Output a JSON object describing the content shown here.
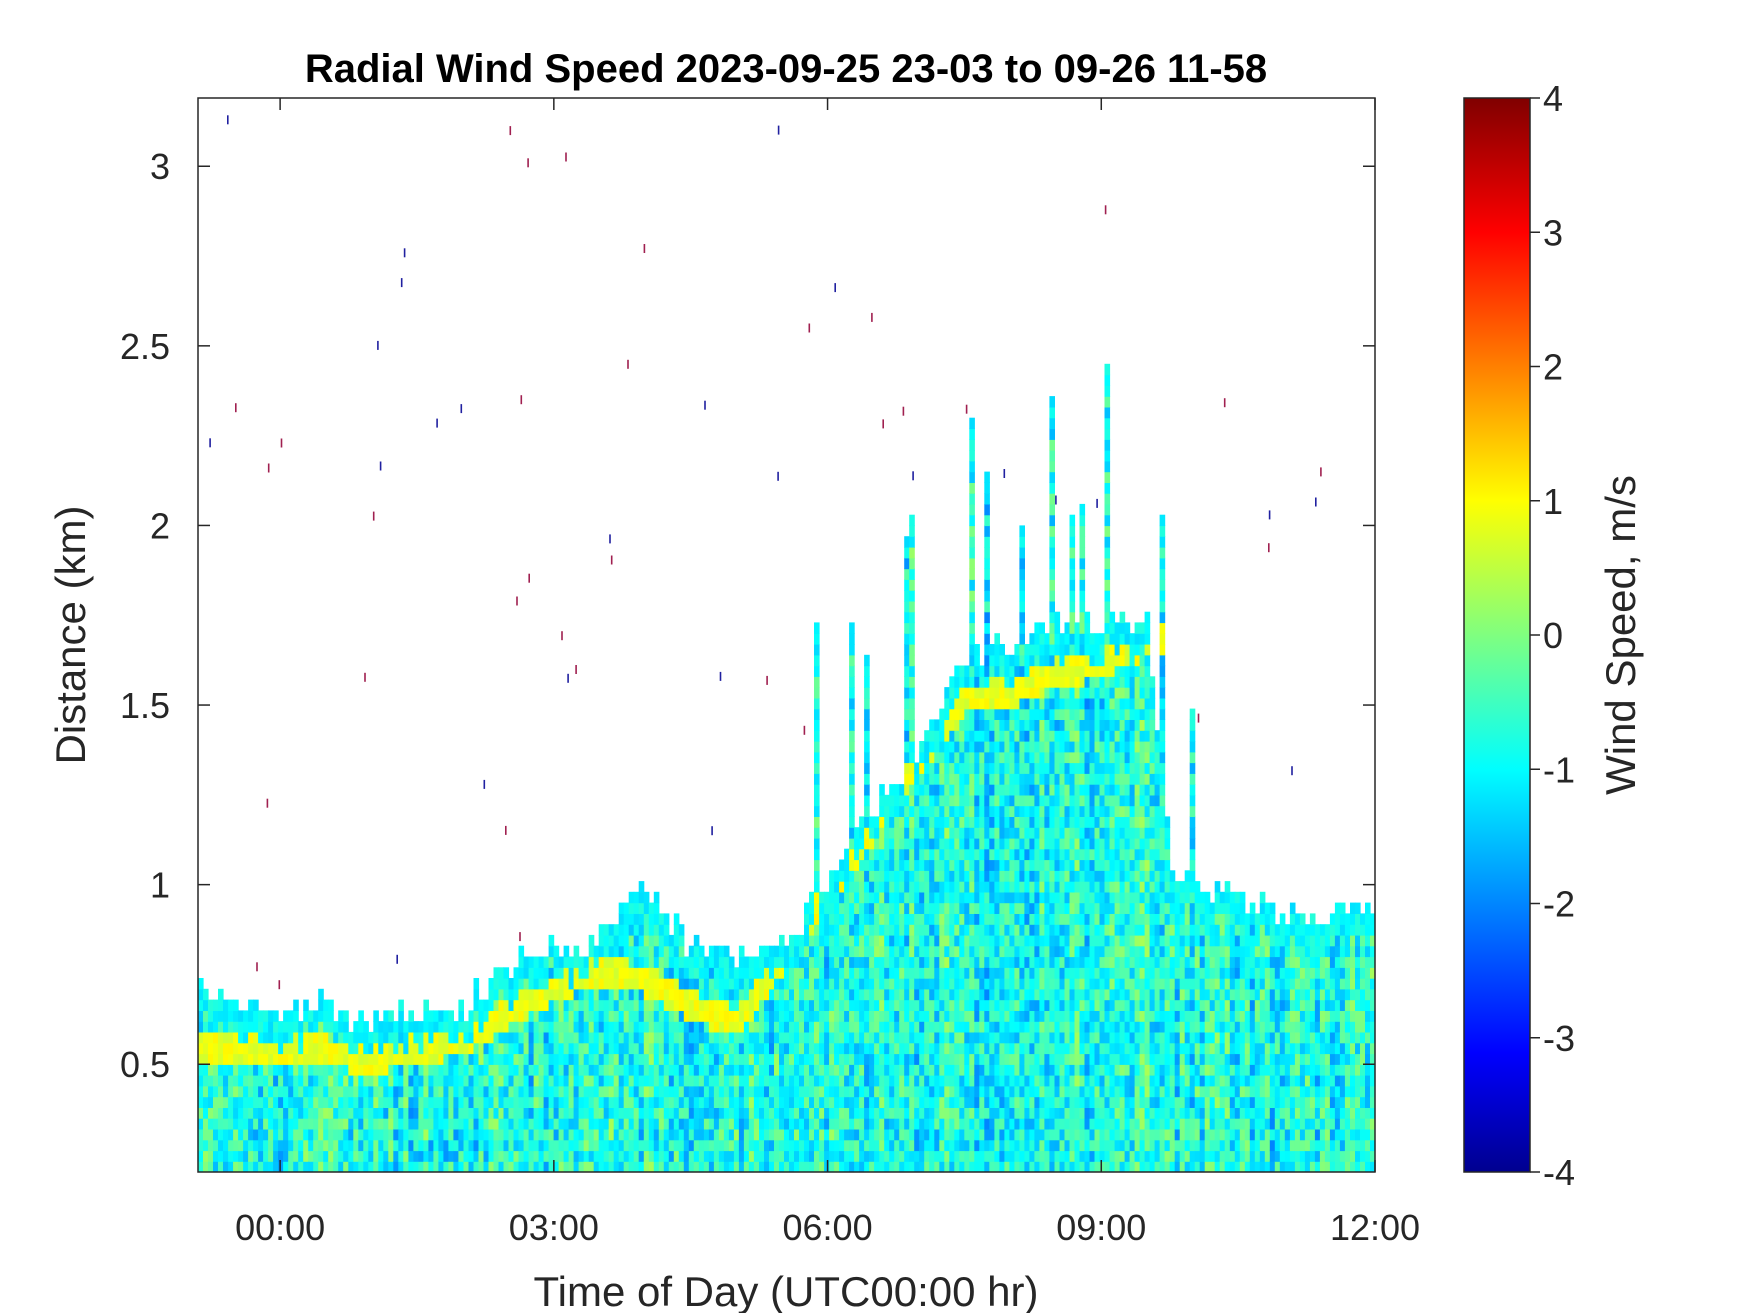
{
  "chart_data": {
    "type": "heatmap",
    "title": "Radial Wind Speed 2023-09-25 23-03 to 09-26 11-58",
    "xlabel": "Time of Day (UTC00:00 hr)",
    "ylabel": "Distance (km)",
    "colorbar_label": "Wind Speed, m/s",
    "x_tick_labels": [
      "00:00",
      "03:00",
      "06:00",
      "09:00",
      "12:00"
    ],
    "x_tick_hours": [
      0,
      3,
      6,
      9,
      12
    ],
    "xlim_hours": [
      -0.9,
      12.0
    ],
    "y_ticks": [
      0.5,
      1,
      1.5,
      2,
      2.5,
      3
    ],
    "y_tick_labels": [
      "0.5",
      "1",
      "1.5",
      "2",
      "2.5",
      "3"
    ],
    "ylim": [
      0.2,
      3.19
    ],
    "colorbar_ticks": [
      4,
      3,
      2,
      1,
      0,
      -1,
      -2,
      -3,
      -4
    ],
    "colorbar_tick_labels": [
      "4",
      "3",
      "2",
      "1",
      "0",
      "-1",
      "-2",
      "-3",
      "-4"
    ],
    "clim": [
      -4,
      4
    ],
    "colormap": "jet",
    "colormap_stops": [
      "#00008f",
      "#0000ff",
      "#00ffff",
      "#ffff00",
      "#ff0000",
      "#800000"
    ],
    "signal_top_km": [
      [
        -0.9,
        0.68
      ],
      [
        -0.5,
        0.64
      ],
      [
        0.0,
        0.63
      ],
      [
        0.5,
        0.65
      ],
      [
        1.0,
        0.6
      ],
      [
        1.5,
        0.63
      ],
      [
        2.0,
        0.65
      ],
      [
        2.5,
        0.75
      ],
      [
        2.8,
        0.78
      ],
      [
        3.0,
        0.83
      ],
      [
        3.3,
        0.8
      ],
      [
        3.6,
        0.88
      ],
      [
        3.9,
        0.98
      ],
      [
        4.2,
        0.9
      ],
      [
        4.6,
        0.8
      ],
      [
        5.0,
        0.78
      ],
      [
        5.5,
        0.8
      ],
      [
        6.0,
        1.0
      ],
      [
        6.5,
        1.2
      ],
      [
        7.0,
        1.35
      ],
      [
        7.5,
        1.6
      ],
      [
        8.0,
        1.65
      ],
      [
        8.5,
        1.7
      ],
      [
        9.0,
        1.7
      ],
      [
        9.5,
        1.72
      ],
      [
        9.8,
        1.0
      ],
      [
        10.5,
        0.95
      ],
      [
        11.0,
        0.9
      ],
      [
        11.5,
        0.9
      ],
      [
        12.0,
        0.95
      ]
    ],
    "aerosol_layer_km": [
      [
        -0.9,
        0.52
      ],
      [
        0.0,
        0.54
      ],
      [
        1.0,
        0.5
      ],
      [
        2.0,
        0.55
      ],
      [
        2.5,
        0.63
      ],
      [
        3.0,
        0.7
      ],
      [
        3.5,
        0.75
      ],
      [
        4.0,
        0.72
      ],
      [
        4.5,
        0.65
      ],
      [
        5.0,
        0.6
      ],
      [
        7.5,
        1.5
      ],
      [
        8.0,
        1.52
      ],
      [
        8.5,
        1.57
      ],
      [
        9.0,
        1.6
      ],
      [
        9.5,
        1.66
      ],
      [
        9.7,
        1.68
      ]
    ]
  }
}
